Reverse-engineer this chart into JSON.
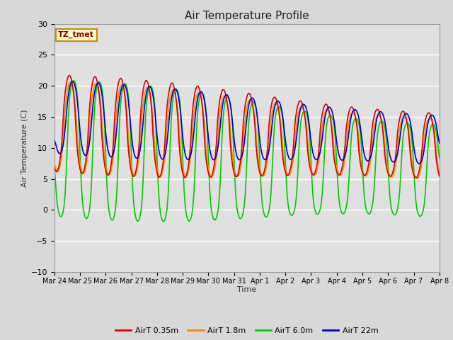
{
  "title": "Air Temperature Profile",
  "xlabel": "Time",
  "ylabel": "Air Temperature (C)",
  "ylim": [
    -10,
    30
  ],
  "annotation": "TZ_tmet",
  "legend": [
    "AirT 0.35m",
    "AirT 1.8m",
    "AirT 6.0m",
    "AirT 22m"
  ],
  "colors": [
    "#dd0000",
    "#ff8800",
    "#00cc00",
    "#0000cc"
  ],
  "background_color": "#e0e0e0",
  "grid_color": "#ffffff",
  "tick_labels": [
    "Mar 24",
    "Mar 25",
    "Mar 26",
    "Mar 27",
    "Mar 28",
    "Mar 29",
    "Mar 30",
    "Mar 31",
    "Apr 1",
    "Apr 2",
    "Apr 3",
    "Apr 4",
    "Apr 5",
    "Apr 6",
    "Apr 7",
    "Apr 8"
  ],
  "linewidth": 1.2
}
